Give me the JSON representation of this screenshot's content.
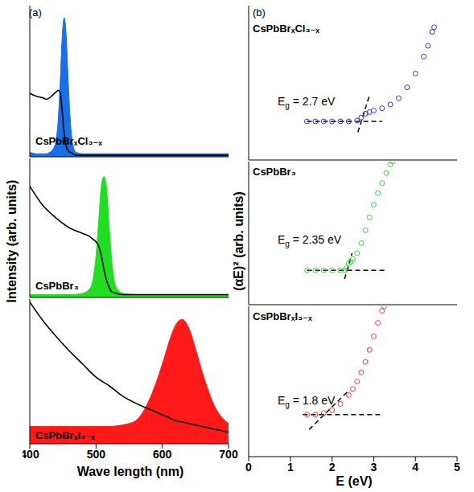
{
  "chart_data": [
    {
      "type": "line",
      "panel_label": "(a)",
      "label": "CsPbBrₓCl₃₋ₓ",
      "x": [
        400,
        410,
        420,
        425,
        430,
        435,
        440,
        443,
        446,
        449,
        452,
        455,
        458,
        461,
        465,
        470,
        480,
        500,
        550,
        600,
        650,
        700
      ],
      "xlim": [
        400,
        700
      ],
      "xticks": [
        400,
        500,
        600,
        700
      ],
      "ylim": [
        0,
        1
      ],
      "tick_labels": false,
      "series": [
        {
          "type": "area",
          "color": "#1a6ee6",
          "values": [
            0.03,
            0.02,
            0.02,
            0.02,
            0.03,
            0.05,
            0.12,
            0.25,
            0.5,
            0.8,
            0.92,
            0.8,
            0.5,
            0.25,
            0.08,
            0.03,
            0.02,
            0.02,
            0.02,
            0.02,
            0.02,
            0.02
          ]
        },
        {
          "type": "line",
          "color": "#000000",
          "values": [
            0.42,
            0.4,
            0.39,
            0.38,
            0.39,
            0.41,
            0.43,
            0.44,
            0.42,
            0.3,
            0.15,
            0.07,
            0.04,
            0.03,
            0.02,
            0.01,
            0.01,
            0.01,
            0.01,
            0.01,
            0.01,
            0.01
          ]
        }
      ]
    },
    {
      "type": "line",
      "label": "CsPbBr₃",
      "ylabel": "Intensity (arb. units)",
      "x": [
        400,
        420,
        440,
        460,
        480,
        490,
        495,
        500,
        504,
        508,
        512,
        516,
        520,
        524,
        530,
        540,
        560,
        600,
        650,
        700
      ],
      "xlim": [
        400,
        700
      ],
      "xticks": [
        400,
        500,
        600,
        700
      ],
      "ylim": [
        0,
        1
      ],
      "tick_labels": false,
      "series": [
        {
          "type": "area",
          "color": "#22dd22",
          "values": [
            0.02,
            0.02,
            0.02,
            0.02,
            0.03,
            0.06,
            0.12,
            0.3,
            0.55,
            0.8,
            0.87,
            0.78,
            0.5,
            0.25,
            0.08,
            0.03,
            0.02,
            0.02,
            0.02,
            0.02
          ]
        },
        {
          "type": "line",
          "color": "#000000",
          "values": [
            0.8,
            0.66,
            0.57,
            0.5,
            0.46,
            0.44,
            0.42,
            0.4,
            0.37,
            0.3,
            0.2,
            0.12,
            0.07,
            0.04,
            0.03,
            0.02,
            0.02,
            0.02,
            0.02,
            0.02
          ]
        }
      ]
    },
    {
      "type": "line",
      "label": "CsPbBrₓI₃₋ₓ",
      "xlabel": "Wave length (nm)",
      "x": [
        400,
        420,
        440,
        460,
        480,
        500,
        520,
        540,
        560,
        580,
        600,
        610,
        620,
        630,
        640,
        650,
        660,
        680,
        700
      ],
      "xlim": [
        400,
        700
      ],
      "xticks": [
        400,
        500,
        600,
        700
      ],
      "ylim": [
        0,
        1
      ],
      "tick_labels": "x",
      "series": [
        {
          "type": "area",
          "color": "#ff1a1a",
          "values": [
            0.12,
            0.12,
            0.12,
            0.12,
            0.12,
            0.12,
            0.12,
            0.13,
            0.16,
            0.3,
            0.55,
            0.7,
            0.82,
            0.86,
            0.8,
            0.66,
            0.5,
            0.25,
            0.14
          ]
        },
        {
          "type": "line",
          "color": "#000000",
          "values": [
            0.98,
            0.85,
            0.74,
            0.64,
            0.55,
            0.46,
            0.4,
            0.33,
            0.28,
            0.24,
            0.2,
            0.18,
            0.16,
            0.15,
            0.14,
            0.13,
            0.12,
            0.1,
            0.08
          ]
        }
      ]
    },
    {
      "type": "scatter",
      "panel_label": "(b)",
      "label": "CsPbBrₓCl₃₋ₓ",
      "annotation": "Eg = 2.7 eV",
      "xlim": [
        0,
        5
      ],
      "xticks": [
        0,
        1,
        2,
        3,
        4,
        5
      ],
      "ylim": [
        0,
        1
      ],
      "tick_labels": false,
      "series": [
        {
          "type": "scatter",
          "marker": "open_circle",
          "color": "#2b3bd1",
          "x": [
            1.4,
            1.6,
            1.8,
            2.0,
            2.2,
            2.4,
            2.6,
            2.7,
            2.8,
            2.9,
            3.0,
            3.2,
            3.4,
            3.6,
            3.8,
            4.0,
            4.2,
            4.3,
            4.4,
            4.45
          ],
          "values": [
            0.25,
            0.25,
            0.25,
            0.25,
            0.25,
            0.25,
            0.255,
            0.275,
            0.3,
            0.31,
            0.32,
            0.335,
            0.36,
            0.4,
            0.47,
            0.56,
            0.67,
            0.74,
            0.83,
            0.86
          ]
        },
        {
          "type": "line",
          "line_style": "dashed",
          "color": "#000000",
          "x": [
            1.4,
            3.2
          ],
          "values": [
            0.25,
            0.25
          ]
        },
        {
          "type": "line",
          "line_style": "dashed",
          "color": "#000000",
          "x": [
            2.62,
            2.9
          ],
          "values": [
            0.18,
            0.42
          ]
        }
      ]
    },
    {
      "type": "scatter",
      "label": "CsPbBr₃",
      "annotation": "Eg = 2.35 eV",
      "ylabel": "(αE)² (arb. units)",
      "xlim": [
        0,
        5
      ],
      "xticks": [
        0,
        1,
        2,
        3,
        4,
        5
      ],
      "ylim": [
        0,
        1
      ],
      "tick_labels": false,
      "series": [
        {
          "type": "scatter",
          "marker": "open_circle",
          "color": "#3ed23e",
          "x": [
            1.4,
            1.6,
            1.8,
            2.0,
            2.2,
            2.3,
            2.35,
            2.4,
            2.45,
            2.5,
            2.6,
            2.7,
            2.8,
            2.9,
            3.0,
            3.1,
            3.2,
            3.3,
            3.4,
            3.45
          ],
          "values": [
            0.24,
            0.24,
            0.24,
            0.24,
            0.24,
            0.24,
            0.26,
            0.29,
            0.3,
            0.32,
            0.36,
            0.43,
            0.52,
            0.61,
            0.7,
            0.78,
            0.85,
            0.92,
            0.98,
            1.0
          ]
        },
        {
          "type": "line",
          "line_style": "dashed",
          "color": "#000000",
          "x": [
            1.4,
            3.3
          ],
          "values": [
            0.24,
            0.24
          ]
        },
        {
          "type": "line",
          "line_style": "dashed",
          "color": "#000000",
          "x": [
            2.3,
            2.48
          ],
          "values": [
            0.18,
            0.36
          ]
        }
      ]
    },
    {
      "type": "scatter",
      "label": "CsPbBrₓI₃₋ₓ",
      "annotation": "Eg = 1.8 eV",
      "xlabel": "E (eV)",
      "xlim": [
        0,
        5
      ],
      "xticks": [
        0,
        1,
        2,
        3,
        4,
        5
      ],
      "ylim": [
        0,
        1
      ],
      "tick_labels": "x",
      "series": [
        {
          "type": "scatter",
          "marker": "open_circle",
          "color": "#e8413c",
          "x": [
            1.4,
            1.6,
            1.8,
            2.0,
            2.2,
            2.4,
            2.5,
            2.6,
            2.7,
            2.8,
            2.9,
            3.0,
            3.1,
            3.2,
            3.25
          ],
          "values": [
            0.28,
            0.28,
            0.29,
            0.31,
            0.35,
            0.41,
            0.45,
            0.5,
            0.56,
            0.63,
            0.71,
            0.8,
            0.89,
            0.97,
            1.0
          ]
        },
        {
          "type": "line",
          "line_style": "dashed",
          "color": "#000000",
          "x": [
            1.3,
            3.2
          ],
          "values": [
            0.28,
            0.28
          ]
        },
        {
          "type": "line",
          "line_style": "dashed",
          "color": "#000000",
          "x": [
            1.45,
            2.4
          ],
          "values": [
            0.18,
            0.44
          ]
        }
      ]
    }
  ]
}
